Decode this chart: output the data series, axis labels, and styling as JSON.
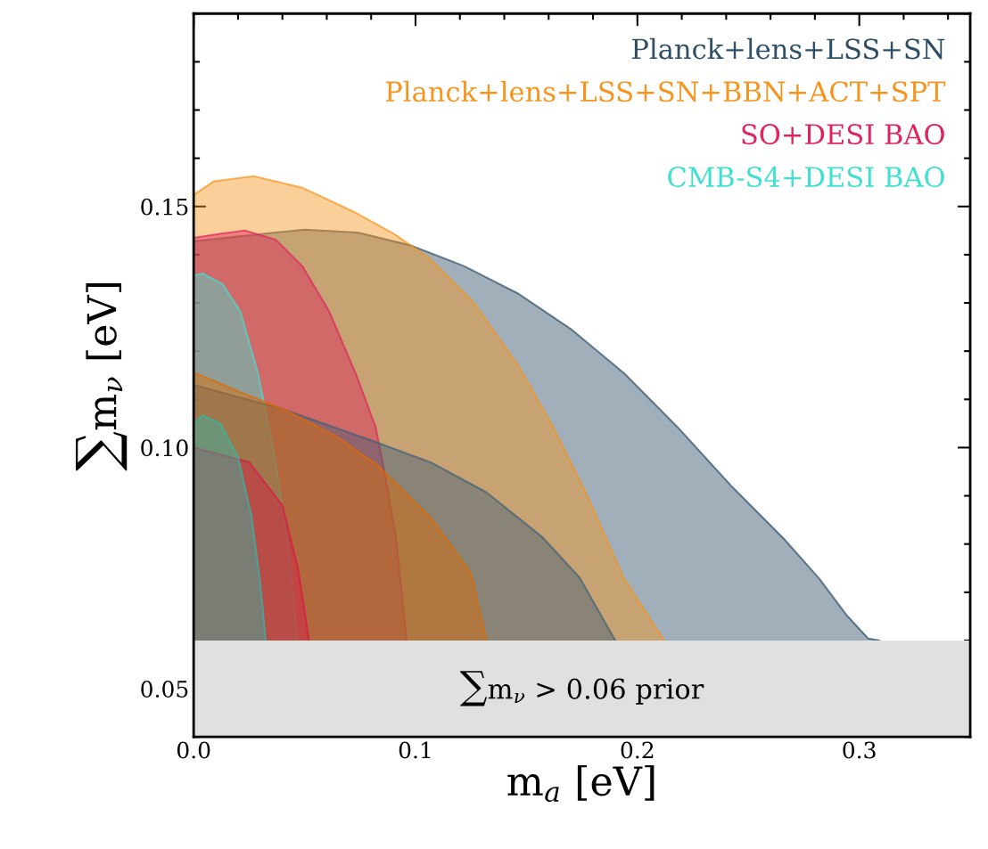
{
  "chart_data": {
    "type": "area",
    "xlabel": "m$_{a}$ [eV]",
    "ylabel": "∑m$_{ν}$ [eV]",
    "xlim": [
      0,
      0.35
    ],
    "xticks": [
      {
        "value": 0,
        "label": "0.0"
      },
      0.1,
      0.2,
      0.3
    ],
    "ylim": [
      0.04,
      0.19
    ],
    "yticks": [
      0.05,
      {
        "value": 0.1,
        "label": "0.10"
      },
      0.15
    ],
    "grid": false,
    "legend": "top right",
    "bands": [
      {
        "axis": "y",
        "from": 0.04,
        "to": 0.06,
        "label": "∑m$_{ν}$ > 0.06 prior",
        "color": "#e0e0e0"
      }
    ],
    "series": [
      {
        "name": "Planck+lens+LSS+SN",
        "color": "#2e4e66",
        "x": [
          0,
          0.033,
          0.05,
          0.074,
          0.098,
          0.122,
          0.146,
          0.17,
          0.194,
          0.218,
          0.242,
          0.266,
          0.282,
          0.294,
          0.304,
          0.309
        ],
        "values": [
          0.1428,
          0.1444,
          0.1452,
          0.1446,
          0.1419,
          0.1376,
          0.132,
          0.1246,
          0.1154,
          0.1043,
          0.0922,
          0.0811,
          0.0728,
          0.0654,
          0.0604,
          0.06
        ]
      },
      {
        "name": "Planck+lens+LSS+SN+BBN+ACT+SPT",
        "color": "#f7941d",
        "x": [
          0,
          0.009,
          0.027,
          0.049,
          0.073,
          0.09,
          0.106,
          0.126,
          0.146,
          0.162,
          0.178,
          0.194,
          0.212
        ],
        "values": [
          0.1524,
          0.1552,
          0.1563,
          0.1539,
          0.1487,
          0.1444,
          0.1394,
          0.1302,
          0.1172,
          0.1043,
          0.0894,
          0.0728,
          0.06
        ]
      },
      {
        "name": "SO+DESI BAO",
        "color": "#e0245e",
        "x": [
          0,
          0.013,
          0.023,
          0.037,
          0.049,
          0.061,
          0.073,
          0.082,
          0.086,
          0.091,
          0.094,
          0.096
        ],
        "values": [
          0.1435,
          0.1444,
          0.145,
          0.1431,
          0.1376,
          0.1283,
          0.1154,
          0.1043,
          0.095,
          0.082,
          0.0691,
          0.06
        ]
      },
      {
        "name": "CMB-S4+DESI BAO",
        "color": "#40e0d0",
        "x": [
          0,
          0.004,
          0.013,
          0.021,
          0.029,
          0.037,
          0.043,
          0.047
        ],
        "values": [
          0.1357,
          0.1361,
          0.1339,
          0.1283,
          0.1154,
          0.0969,
          0.0783,
          0.06
        ]
      },
      {
        "color": "#3d5f78",
        "x": [
          0,
          0.04,
          0.08,
          0.107,
          0.132,
          0.157,
          0.174,
          0.19
        ],
        "values": [
          0.113,
          0.108,
          0.1015,
          0.0969,
          0.0907,
          0.0815,
          0.073,
          0.06
        ]
      },
      {
        "color": "#e06a00",
        "x": [
          0,
          0.02,
          0.042,
          0.064,
          0.083,
          0.107,
          0.125,
          0.132
        ],
        "values": [
          0.1156,
          0.1117,
          0.1076,
          0.1024,
          0.0963,
          0.0854,
          0.0739,
          0.06
        ]
      },
      {
        "color": "#d81a45",
        "x": [
          0,
          0.025,
          0.04,
          0.047,
          0.052
        ],
        "values": [
          0.1,
          0.097,
          0.088,
          0.075,
          0.06
        ]
      },
      {
        "color": "#2fb8a8",
        "x": [
          0,
          0.004,
          0.012,
          0.02,
          0.026,
          0.03,
          0.0325
        ],
        "values": [
          0.105,
          0.1067,
          0.105,
          0.098,
          0.086,
          0.072,
          0.06
        ]
      }
    ]
  }
}
